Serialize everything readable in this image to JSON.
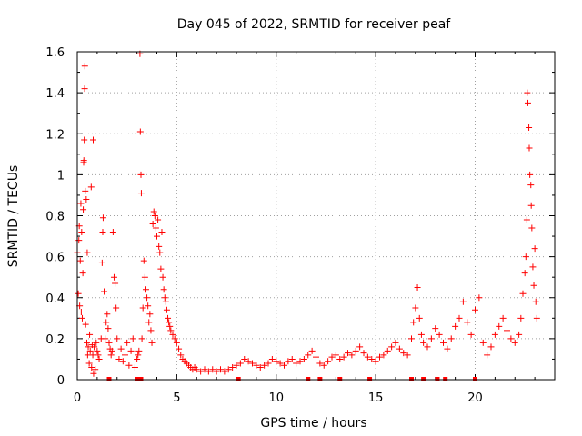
{
  "colors": {
    "series": "#ff0000",
    "grid": "#a0a0a0",
    "axis": "#000000",
    "background": "#ffffff"
  },
  "chart_data": {
    "type": "scatter",
    "title": "Day 045 of 2022, SRMTID for receiver peaf",
    "xlabel": "GPS time / hours",
    "ylabel": "SRMTID / TECUs",
    "xlim": [
      0,
      24
    ],
    "ylim": [
      0,
      1.6
    ],
    "xticks": [
      0,
      5,
      10,
      15,
      20
    ],
    "xtick_labels": [
      "0",
      "5",
      "10",
      "15",
      "20"
    ],
    "yticks": [
      0,
      0.2,
      0.4,
      0.6,
      0.8,
      1.0,
      1.2,
      1.4,
      1.6
    ],
    "ytick_labels": [
      "0",
      "0.2",
      "0.4",
      "0.6",
      "0.8",
      "1",
      "1.2",
      "1.4",
      "1.6"
    ],
    "grid": true,
    "marker": "plus",
    "series": [
      {
        "name": "SRMTID",
        "points": [
          [
            0.0,
            0.62
          ],
          [
            0.05,
            0.42
          ],
          [
            0.08,
            0.68
          ],
          [
            0.1,
            0.75
          ],
          [
            0.12,
            0.36
          ],
          [
            0.15,
            0.58
          ],
          [
            0.18,
            0.86
          ],
          [
            0.2,
            0.33
          ],
          [
            0.22,
            0.72
          ],
          [
            0.25,
            0.3
          ],
          [
            0.28,
            0.52
          ],
          [
            0.3,
            0.83
          ],
          [
            0.32,
            1.06
          ],
          [
            0.33,
            1.07
          ],
          [
            0.35,
            1.17
          ],
          [
            0.37,
            1.42
          ],
          [
            0.38,
            1.53
          ],
          [
            0.4,
            0.92
          ],
          [
            0.42,
            0.27
          ],
          [
            0.45,
            0.88
          ],
          [
            0.48,
            0.18
          ],
          [
            0.5,
            0.62
          ],
          [
            0.52,
            0.12
          ],
          [
            0.55,
            0.16
          ],
          [
            0.6,
            0.08
          ],
          [
            0.62,
            0.22
          ],
          [
            0.65,
            0.14
          ],
          [
            0.7,
            0.94
          ],
          [
            0.72,
            0.06
          ],
          [
            0.75,
            0.17
          ],
          [
            0.78,
            0.12
          ],
          [
            0.8,
            1.17
          ],
          [
            0.82,
            0.03
          ],
          [
            0.85,
            0.16
          ],
          [
            0.9,
            0.05
          ],
          [
            0.95,
            0.18
          ],
          [
            1.0,
            0.14
          ],
          [
            1.05,
            0.12
          ],
          [
            1.1,
            0.1
          ],
          [
            1.2,
            0.2
          ],
          [
            1.25,
            0.57
          ],
          [
            1.28,
            0.72
          ],
          [
            1.3,
            0.79
          ],
          [
            1.35,
            0.43
          ],
          [
            1.4,
            0.2
          ],
          [
            1.45,
            0.28
          ],
          [
            1.5,
            0.32
          ],
          [
            1.55,
            0.25
          ],
          [
            1.6,
            0.18
          ],
          [
            1.65,
            0.15
          ],
          [
            1.7,
            0.12
          ],
          [
            1.75,
            0.14
          ],
          [
            1.8,
            0.72
          ],
          [
            1.85,
            0.5
          ],
          [
            1.9,
            0.47
          ],
          [
            1.95,
            0.35
          ],
          [
            2.0,
            0.2
          ],
          [
            2.1,
            0.1
          ],
          [
            2.2,
            0.15
          ],
          [
            2.3,
            0.09
          ],
          [
            2.4,
            0.12
          ],
          [
            2.5,
            0.18
          ],
          [
            2.6,
            0.07
          ],
          [
            2.7,
            0.14
          ],
          [
            2.8,
            0.2
          ],
          [
            2.9,
            0.06
          ],
          [
            3.0,
            0.1
          ],
          [
            3.05,
            0.12
          ],
          [
            3.1,
            0.14
          ],
          [
            3.15,
            1.59
          ],
          [
            3.17,
            1.21
          ],
          [
            3.2,
            1.0
          ],
          [
            3.22,
            0.91
          ],
          [
            3.25,
            0.2
          ],
          [
            3.3,
            0.35
          ],
          [
            3.35,
            0.58
          ],
          [
            3.4,
            0.5
          ],
          [
            3.45,
            0.44
          ],
          [
            3.5,
            0.4
          ],
          [
            3.55,
            0.36
          ],
          [
            3.6,
            0.28
          ],
          [
            3.65,
            0.32
          ],
          [
            3.7,
            0.24
          ],
          [
            3.75,
            0.18
          ],
          [
            3.8,
            0.76
          ],
          [
            3.85,
            0.82
          ],
          [
            3.9,
            0.8
          ],
          [
            3.95,
            0.74
          ],
          [
            4.0,
            0.7
          ],
          [
            4.05,
            0.78
          ],
          [
            4.1,
            0.65
          ],
          [
            4.15,
            0.62
          ],
          [
            4.2,
            0.54
          ],
          [
            4.25,
            0.72
          ],
          [
            4.3,
            0.5
          ],
          [
            4.35,
            0.44
          ],
          [
            4.4,
            0.4
          ],
          [
            4.45,
            0.38
          ],
          [
            4.5,
            0.34
          ],
          [
            4.55,
            0.3
          ],
          [
            4.6,
            0.28
          ],
          [
            4.65,
            0.26
          ],
          [
            4.7,
            0.24
          ],
          [
            4.8,
            0.22
          ],
          [
            4.9,
            0.2
          ],
          [
            5.0,
            0.18
          ],
          [
            5.1,
            0.15
          ],
          [
            5.2,
            0.12
          ],
          [
            5.3,
            0.1
          ],
          [
            5.4,
            0.09
          ],
          [
            5.5,
            0.08
          ],
          [
            5.6,
            0.07
          ],
          [
            5.7,
            0.06
          ],
          [
            5.8,
            0.05
          ],
          [
            5.9,
            0.06
          ],
          [
            6.0,
            0.05
          ],
          [
            6.2,
            0.04
          ],
          [
            6.4,
            0.05
          ],
          [
            6.6,
            0.04
          ],
          [
            6.8,
            0.05
          ],
          [
            7.0,
            0.04
          ],
          [
            7.2,
            0.05
          ],
          [
            7.4,
            0.04
          ],
          [
            7.6,
            0.05
          ],
          [
            7.8,
            0.06
          ],
          [
            8.0,
            0.07
          ],
          [
            8.2,
            0.08
          ],
          [
            8.4,
            0.1
          ],
          [
            8.6,
            0.09
          ],
          [
            8.8,
            0.08
          ],
          [
            9.0,
            0.07
          ],
          [
            9.2,
            0.06
          ],
          [
            9.4,
            0.07
          ],
          [
            9.6,
            0.08
          ],
          [
            9.8,
            0.1
          ],
          [
            10.0,
            0.09
          ],
          [
            10.2,
            0.08
          ],
          [
            10.4,
            0.07
          ],
          [
            10.6,
            0.09
          ],
          [
            10.8,
            0.1
          ],
          [
            11.0,
            0.08
          ],
          [
            11.2,
            0.09
          ],
          [
            11.4,
            0.1
          ],
          [
            11.6,
            0.12
          ],
          [
            11.8,
            0.14
          ],
          [
            12.0,
            0.11
          ],
          [
            12.2,
            0.08
          ],
          [
            12.4,
            0.07
          ],
          [
            12.6,
            0.09
          ],
          [
            12.8,
            0.11
          ],
          [
            13.0,
            0.12
          ],
          [
            13.2,
            0.1
          ],
          [
            13.4,
            0.11
          ],
          [
            13.6,
            0.13
          ],
          [
            13.8,
            0.12
          ],
          [
            14.0,
            0.14
          ],
          [
            14.2,
            0.16
          ],
          [
            14.4,
            0.13
          ],
          [
            14.6,
            0.11
          ],
          [
            14.8,
            0.1
          ],
          [
            15.0,
            0.09
          ],
          [
            15.2,
            0.11
          ],
          [
            15.4,
            0.12
          ],
          [
            15.6,
            0.14
          ],
          [
            15.8,
            0.16
          ],
          [
            16.0,
            0.18
          ],
          [
            16.2,
            0.15
          ],
          [
            16.4,
            0.13
          ],
          [
            16.6,
            0.12
          ],
          [
            16.8,
            0.2
          ],
          [
            16.9,
            0.28
          ],
          [
            17.0,
            0.35
          ],
          [
            17.1,
            0.45
          ],
          [
            17.2,
            0.3
          ],
          [
            17.3,
            0.22
          ],
          [
            17.4,
            0.18
          ],
          [
            17.6,
            0.16
          ],
          [
            17.8,
            0.2
          ],
          [
            18.0,
            0.25
          ],
          [
            18.2,
            0.22
          ],
          [
            18.4,
            0.18
          ],
          [
            18.6,
            0.15
          ],
          [
            18.8,
            0.2
          ],
          [
            19.0,
            0.26
          ],
          [
            19.2,
            0.3
          ],
          [
            19.4,
            0.38
          ],
          [
            19.6,
            0.28
          ],
          [
            19.8,
            0.22
          ],
          [
            20.0,
            0.34
          ],
          [
            20.2,
            0.4
          ],
          [
            20.4,
            0.18
          ],
          [
            20.6,
            0.12
          ],
          [
            20.8,
            0.16
          ],
          [
            21.0,
            0.22
          ],
          [
            21.2,
            0.26
          ],
          [
            21.4,
            0.3
          ],
          [
            21.6,
            0.24
          ],
          [
            21.8,
            0.2
          ],
          [
            22.0,
            0.18
          ],
          [
            22.2,
            0.22
          ],
          [
            22.3,
            0.3
          ],
          [
            22.4,
            0.42
          ],
          [
            22.5,
            0.52
          ],
          [
            22.55,
            0.6
          ],
          [
            22.6,
            0.78
          ],
          [
            22.62,
            1.4
          ],
          [
            22.65,
            1.35
          ],
          [
            22.7,
            1.23
          ],
          [
            22.72,
            1.13
          ],
          [
            22.75,
            1.0
          ],
          [
            22.8,
            0.95
          ],
          [
            22.82,
            0.85
          ],
          [
            22.85,
            0.74
          ],
          [
            22.9,
            0.55
          ],
          [
            22.95,
            0.46
          ],
          [
            23.0,
            0.64
          ],
          [
            23.05,
            0.38
          ],
          [
            23.1,
            0.3
          ]
        ]
      }
    ],
    "zero_markers_x": [
      1.6,
      3.0,
      3.1,
      3.2,
      8.1,
      11.6,
      12.2,
      13.2,
      14.7,
      16.8,
      17.4,
      18.1,
      18.5,
      20.0
    ]
  }
}
